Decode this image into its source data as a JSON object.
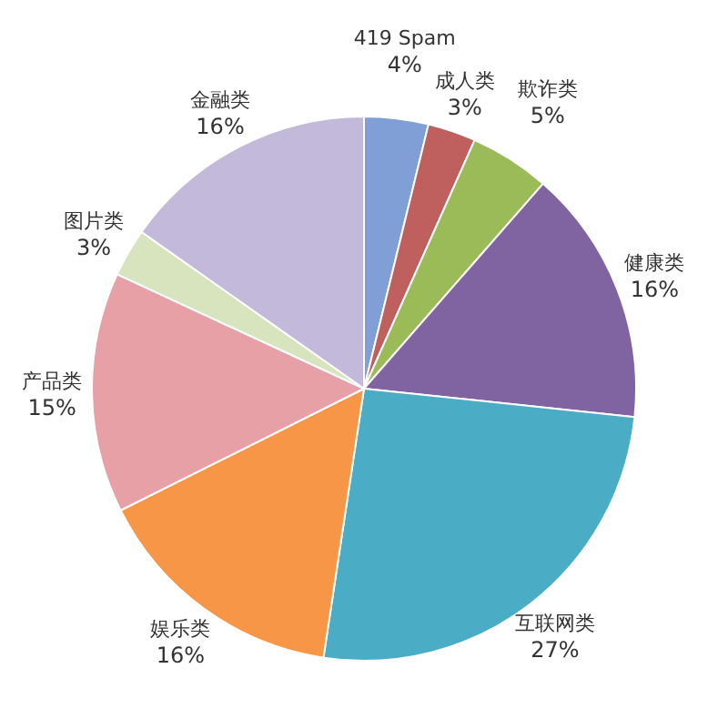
{
  "chart_data": {
    "type": "pie",
    "categories": [
      "419 Spam",
      "成人类",
      "欺诈类",
      "健康类",
      "互联网类",
      "娱乐类",
      "产品类",
      "图片类",
      "金融类"
    ],
    "values": [
      4,
      3,
      5,
      16,
      27,
      16,
      15,
      3,
      16
    ],
    "colors": [
      "#7f9fd6",
      "#c0605e",
      "#9bbb59",
      "#8064a2",
      "#4bacc6",
      "#f79646",
      "#e6a0a6",
      "#d7e4bd",
      "#c3b9da"
    ],
    "value_labels": [
      "4%",
      "3%",
      "5%",
      "16%",
      "27%",
      "16%",
      "15%",
      "3%",
      "16%"
    ],
    "legend": false
  }
}
